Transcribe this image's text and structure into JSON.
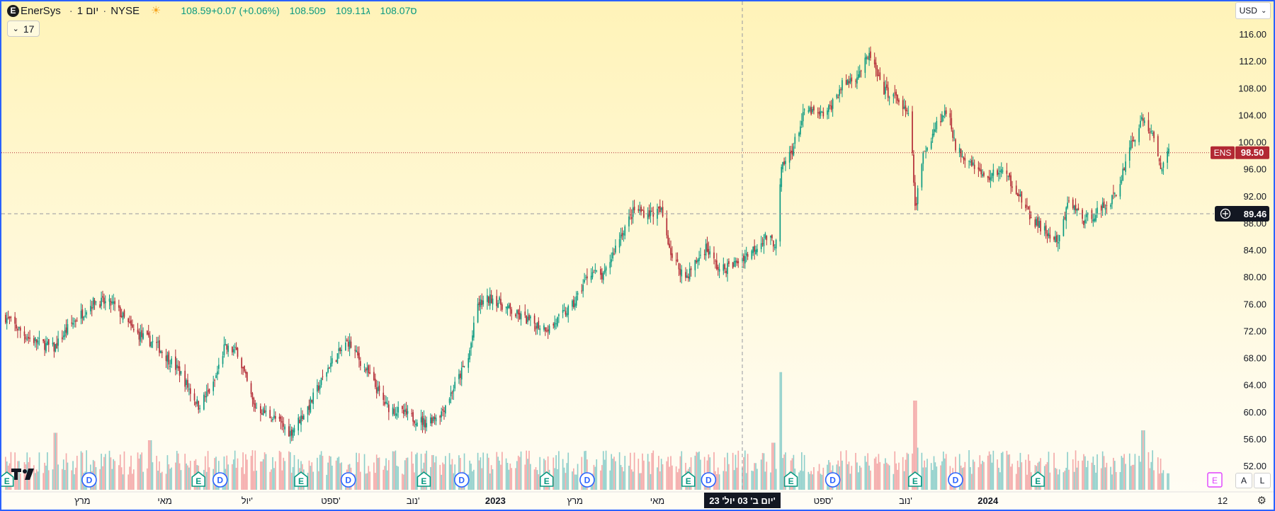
{
  "header": {
    "symbol": "EnerSys",
    "interval": "יום 1",
    "exchange": "NYSE",
    "open": "פ108.50",
    "high": "ג109.11",
    "low": "ס108.07",
    "close": "108.59",
    "change": "+0.07 (+0.06%)"
  },
  "collapse_count": "17",
  "currency": "USD",
  "scale_buttons": {
    "auto": "A",
    "log": "L"
  },
  "labels": {
    "ens_symbol": "ENS",
    "ens_price": "98.50",
    "crosshair_price": "89.46",
    "crosshair_date": "יום ב' 03 יול' 23'",
    "axis_end": "12"
  },
  "colors": {
    "up": "#089981",
    "down": "#b22833",
    "vol_up": "#8ecfcb",
    "vol_down": "#f4a9a9",
    "accent": "#2962ff",
    "earnings": "#089981",
    "dividend": "#2962ff"
  },
  "chart_data": {
    "type": "candlestick",
    "title": "",
    "y_ticks": [
      52,
      56,
      60,
      64,
      68,
      72,
      76,
      80,
      84,
      88,
      92,
      96,
      100,
      104,
      108,
      112,
      116
    ],
    "ylim": [
      50.5,
      118.2
    ],
    "x_labels": [
      {
        "label": "מרץ",
        "date": "2022-03-01"
      },
      {
        "label": "מאי",
        "date": "2022-05-01"
      },
      {
        "label": "יול'",
        "date": "2022-07-01"
      },
      {
        "label": "ספט'",
        "date": "2022-09-01"
      },
      {
        "label": "נוב'",
        "date": "2022-11-01"
      },
      {
        "label": "2023",
        "date": "2023-01-01"
      },
      {
        "label": "מרץ",
        "date": "2023-03-01"
      },
      {
        "label": "מאי",
        "date": "2023-05-01"
      },
      {
        "label": "ספט'",
        "date": "2023-09-01"
      },
      {
        "label": "נוב'",
        "date": "2023-11-01"
      },
      {
        "label": "2024",
        "date": "2024-01-01"
      }
    ],
    "price_path": [
      [
        "2022-01-01",
        74.5
      ],
      [
        "2022-01-20",
        71
      ],
      [
        "2022-02-08",
        69.5
      ],
      [
        "2022-02-20",
        73
      ],
      [
        "2022-03-10",
        76.5
      ],
      [
        "2022-03-24",
        76
      ],
      [
        "2022-04-08",
        72
      ],
      [
        "2022-04-25",
        70
      ],
      [
        "2022-05-12",
        66
      ],
      [
        "2022-05-26",
        61
      ],
      [
        "2022-06-06",
        64
      ],
      [
        "2022-06-14",
        69.5
      ],
      [
        "2022-06-24",
        69
      ],
      [
        "2022-07-06",
        61
      ],
      [
        "2022-07-22",
        59
      ],
      [
        "2022-08-02",
        57
      ],
      [
        "2022-08-16",
        61
      ],
      [
        "2022-08-31",
        67
      ],
      [
        "2022-09-14",
        70.5
      ],
      [
        "2022-09-28",
        66
      ],
      [
        "2022-10-12",
        61
      ],
      [
        "2022-10-28",
        59.5
      ],
      [
        "2022-11-10",
        58.5
      ],
      [
        "2022-11-22",
        60
      ],
      [
        "2022-12-02",
        64
      ],
      [
        "2022-12-12",
        68
      ],
      [
        "2022-12-19",
        76
      ],
      [
        "2022-12-30",
        77
      ],
      [
        "2023-01-16",
        74.5
      ],
      [
        "2023-02-01",
        73
      ],
      [
        "2023-02-10",
        72.5
      ],
      [
        "2023-02-28",
        76
      ],
      [
        "2023-03-12",
        81
      ],
      [
        "2023-03-22",
        80
      ],
      [
        "2023-04-03",
        86
      ],
      [
        "2023-04-14",
        90
      ],
      [
        "2023-04-25",
        89.5
      ],
      [
        "2023-05-04",
        89.8
      ],
      [
        "2023-05-12",
        83
      ],
      [
        "2023-05-22",
        80
      ],
      [
        "2023-06-06",
        84.5
      ],
      [
        "2023-06-16",
        81
      ],
      [
        "2023-06-27",
        82
      ],
      [
        "2023-07-10",
        84
      ],
      [
        "2023-07-20",
        86
      ],
      [
        "2023-07-28",
        85
      ],
      [
        "2023-08-01",
        96
      ],
      [
        "2023-08-09",
        99
      ],
      [
        "2023-08-19",
        105
      ],
      [
        "2023-08-29",
        104
      ],
      [
        "2023-09-04",
        104.5
      ],
      [
        "2023-09-15",
        108.5
      ],
      [
        "2023-09-26",
        110
      ],
      [
        "2023-10-06",
        113
      ],
      [
        "2023-10-14",
        108
      ],
      [
        "2023-10-26",
        106.5
      ],
      [
        "2023-11-05",
        103
      ],
      [
        "2023-11-08",
        90
      ],
      [
        "2023-11-14",
        98
      ],
      [
        "2023-11-24",
        103
      ],
      [
        "2023-12-03",
        105
      ],
      [
        "2023-12-08",
        99
      ],
      [
        "2023-12-19",
        97.5
      ],
      [
        "2023-12-30",
        94.5
      ],
      [
        "2024-01-10",
        96
      ],
      [
        "2024-01-21",
        93.5
      ],
      [
        "2024-02-01",
        89
      ],
      [
        "2024-02-14",
        86.5
      ],
      [
        "2024-02-22",
        85
      ],
      [
        "2024-03-01",
        91.5
      ],
      [
        "2024-03-12",
        88.5
      ],
      [
        "2024-03-24",
        90
      ],
      [
        "2024-04-06",
        92.5
      ],
      [
        "2024-04-14",
        99
      ],
      [
        "2024-04-25",
        103.5
      ],
      [
        "2024-05-02",
        101
      ],
      [
        "2024-05-08",
        96.5
      ],
      [
        "2024-05-14",
        98.5
      ]
    ],
    "volume_spikes": [
      [
        "2023-07-31",
        0.95
      ],
      [
        "2023-11-08",
        0.72
      ],
      [
        "2022-02-09",
        0.46
      ],
      [
        "2022-04-20",
        0.4
      ],
      [
        "2023-07-26",
        0.38
      ],
      [
        "2024-04-25",
        0.48
      ],
      [
        "2023-11-10",
        0.34
      ]
    ],
    "event_markers": [
      {
        "type": "E",
        "date": "2022-01-04"
      },
      {
        "type": "D",
        "date": "2022-03-06"
      },
      {
        "type": "D",
        "date": "2022-06-11"
      },
      {
        "type": "E",
        "date": "2022-05-26"
      },
      {
        "type": "E",
        "date": "2022-08-10"
      },
      {
        "type": "D",
        "date": "2022-09-14"
      },
      {
        "type": "E",
        "date": "2022-11-09"
      },
      {
        "type": "D",
        "date": "2022-12-07"
      },
      {
        "type": "E",
        "date": "2023-02-08"
      },
      {
        "type": "D",
        "date": "2023-03-10"
      },
      {
        "type": "E",
        "date": "2023-05-24"
      },
      {
        "type": "D",
        "date": "2023-06-08"
      },
      {
        "type": "E",
        "date": "2023-08-08"
      },
      {
        "type": "D",
        "date": "2023-09-08"
      },
      {
        "type": "E",
        "date": "2023-11-08"
      },
      {
        "type": "D",
        "date": "2023-12-08"
      },
      {
        "type": "E",
        "date": "2024-02-07"
      }
    ],
    "future_earnings_date": "2024-05-22",
    "crosshair": {
      "date": "2023-07-03",
      "price": 89.46
    },
    "last_price": 98.5,
    "grid": false,
    "legend": "none"
  }
}
